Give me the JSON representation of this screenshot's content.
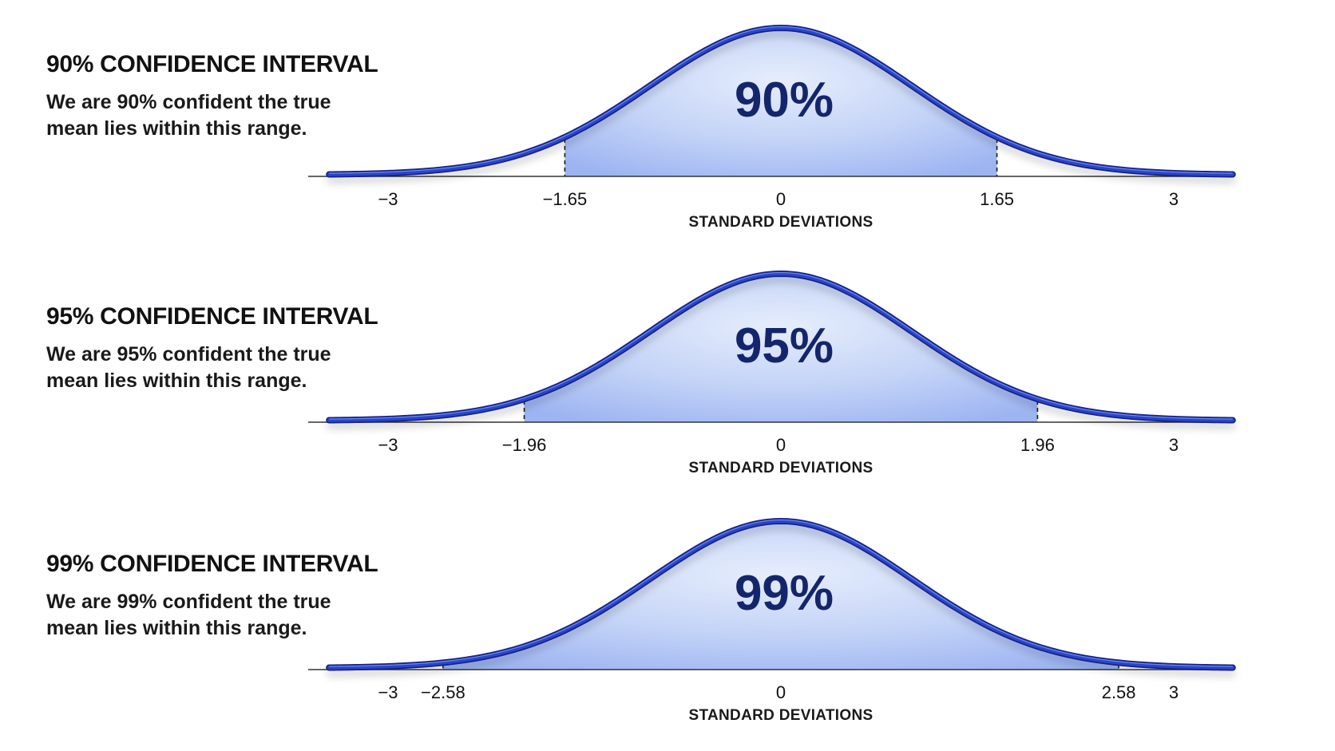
{
  "chart_data": [
    {
      "type": "area",
      "title": "90% CONFIDENCE INTERVAL",
      "subtitle": "We are 90% confident the true mean lies within this range.",
      "center_label": "90%",
      "xlabel": "STANDARD DEVIATIONS",
      "xlim": [
        -3,
        3
      ],
      "x_ticks": [
        {
          "value": -3,
          "label": "−3"
        },
        {
          "value": -1.65,
          "label": "−1.65"
        },
        {
          "value": 0,
          "label": "0"
        },
        {
          "value": 1.65,
          "label": "1.65"
        },
        {
          "value": 3,
          "label": "3"
        }
      ],
      "interval": [
        -1.65,
        1.65
      ],
      "confidence": 0.9
    },
    {
      "type": "area",
      "title": "95% CONFIDENCE INTERVAL",
      "subtitle": "We are 95% confident the true mean lies within this range.",
      "center_label": "95%",
      "xlabel": "STANDARD DEVIATIONS",
      "xlim": [
        -3,
        3
      ],
      "x_ticks": [
        {
          "value": -3,
          "label": "−3"
        },
        {
          "value": -1.96,
          "label": "−1.96"
        },
        {
          "value": 0,
          "label": "0"
        },
        {
          "value": 1.96,
          "label": "1.96"
        },
        {
          "value": 3,
          "label": "3"
        }
      ],
      "interval": [
        -1.96,
        1.96
      ],
      "confidence": 0.95
    },
    {
      "type": "area",
      "title": "99% CONFIDENCE INTERVAL",
      "subtitle": "We are 99% confident the true mean lies within this range.",
      "center_label": "99%",
      "xlabel": "STANDARD DEVIATIONS",
      "xlim": [
        -3,
        3
      ],
      "x_ticks": [
        {
          "value": -3,
          "label": "−3"
        },
        {
          "value": -2.58,
          "label": "−2.58"
        },
        {
          "value": 0,
          "label": "0"
        },
        {
          "value": 2.58,
          "label": "2.58"
        },
        {
          "value": 3,
          "label": "3"
        }
      ],
      "interval": [
        -2.58,
        2.58
      ],
      "confidence": 0.99
    }
  ],
  "colors": {
    "curve": "#2a46c8",
    "curve_dark": "#13218a",
    "fill": "#9db4f2",
    "fill_light": "#e6edfc",
    "center_label": "#14266b"
  }
}
